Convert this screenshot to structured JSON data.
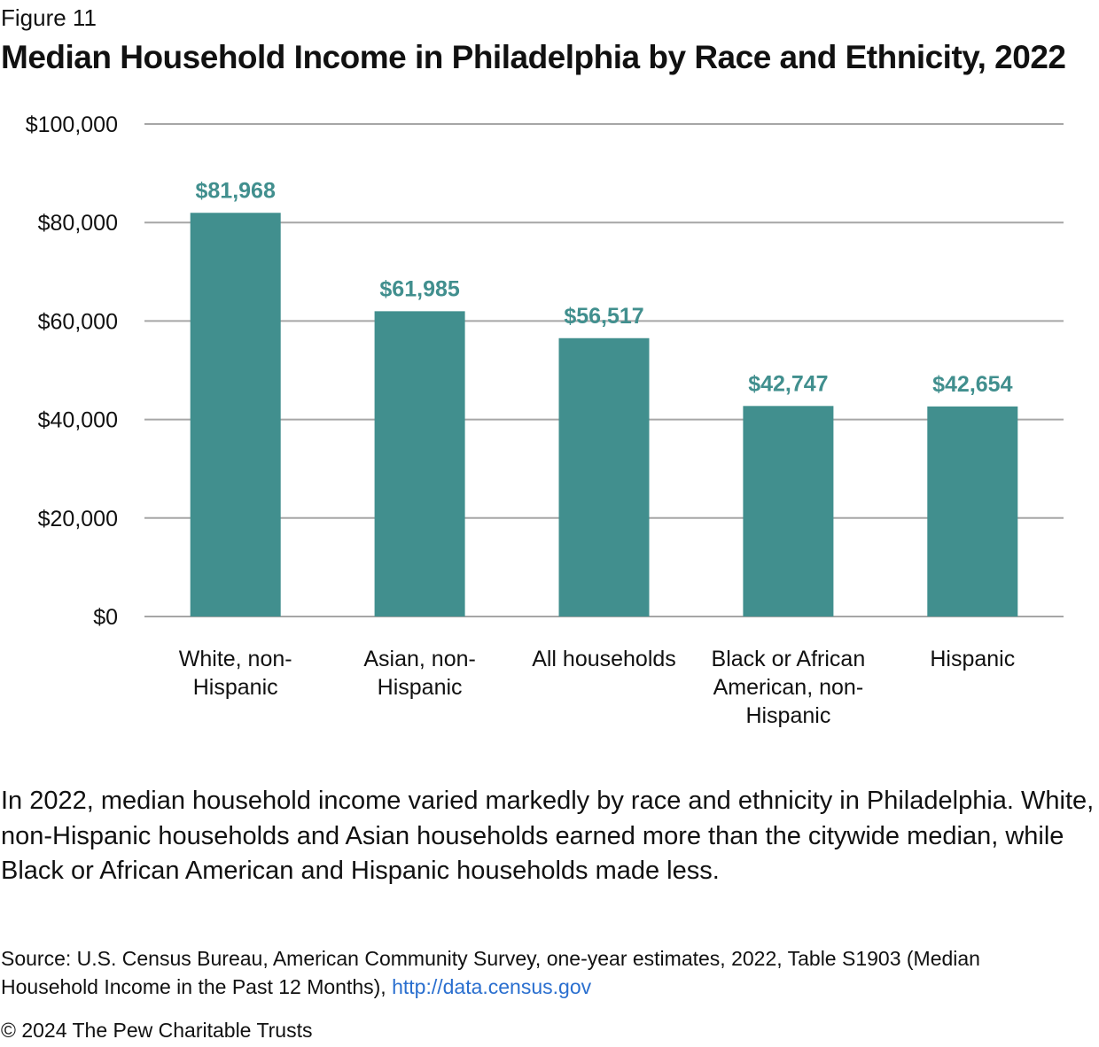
{
  "figure_label": "Figure 11",
  "chart_data": {
    "type": "bar",
    "title": "Median Household Income in Philadelphia by Race and Ethnicity, 2022",
    "categories": [
      [
        "White, non-",
        "Hispanic"
      ],
      [
        "Asian, non-",
        "Hispanic"
      ],
      [
        "All households"
      ],
      [
        "Black or African",
        "American, non-",
        "Hispanic"
      ],
      [
        "Hispanic"
      ]
    ],
    "values": [
      81968,
      61985,
      56517,
      42747,
      42654
    ],
    "data_labels": [
      "$81,968",
      "$61,985",
      "$56,517",
      "$42,747",
      "$42,654"
    ],
    "yticks": [
      0,
      20000,
      40000,
      60000,
      80000,
      100000
    ],
    "ytick_labels": [
      "$0",
      "$20,000",
      "$40,000",
      "$60,000",
      "$80,000",
      "$100,000"
    ],
    "ylim": [
      0,
      100000
    ],
    "xlabel": "",
    "ylabel": "",
    "grid": true,
    "colors": {
      "bar": "#418f8e",
      "label": "#418f8e",
      "grid": "#a6a6a6"
    }
  },
  "caption": "In 2022, median household income varied markedly by race and ethnicity in Philadelphia. White, non-Hispanic households and Asian households earned more than the citywide median, while Black or African American and Hispanic households made less.",
  "source_text": "Source: U.S. Census Bureau, American Community Survey, one-year estimates, 2022, Table S1903 (Median Household Income in the Past 12 Months),",
  "source_link": "http://data.census.gov",
  "copyright": "© 2024 The Pew Charitable Trusts"
}
